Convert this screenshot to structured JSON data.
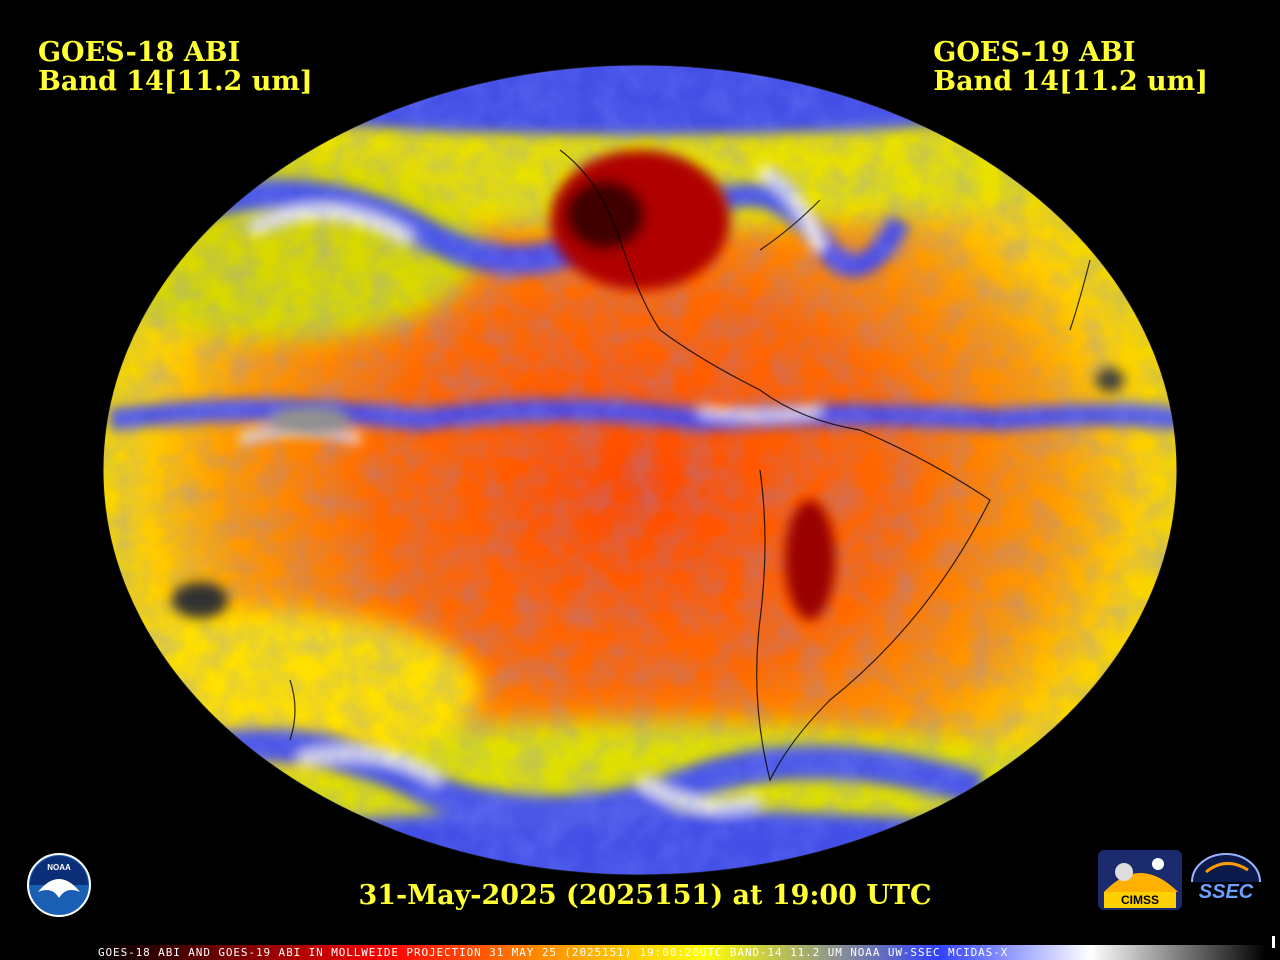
{
  "header_left": {
    "line1": "GOES-18 ABI",
    "line2": "Band 14[11.2 um]"
  },
  "header_right": {
    "line1": "GOES-19 ABI",
    "line2": "Band 14[11.2 um]"
  },
  "datestamp": "31-May-2025 (2025151) at 19:00 UTC",
  "footer": "GOES-18 ABI AND GOES-19 ABI IN MOLLWEIDE PROJECTION 31 MAY 25 (2025151) 19:00:20UTC BAND-14 11.2 UM NOAA UW-SSEC MCIDAS-X",
  "logos": {
    "noaa": "NOAA",
    "cimss": "CIMSS",
    "ssec": "SSEC"
  },
  "colors": {
    "annotation_text": "#ffff33",
    "background": "#000000",
    "warm_high": "#ff3b00",
    "warm_mid": "#ff7a00",
    "warm_low": "#ffd400",
    "cool": "#3040ff",
    "cold": "#e8e8ff",
    "hottest": "#7a0000"
  },
  "colorbar_stops": [
    "#000000",
    "#ff0000",
    "#ff8c00",
    "#ffff00",
    "#3040ff",
    "#ffffff",
    "#000000"
  ]
}
